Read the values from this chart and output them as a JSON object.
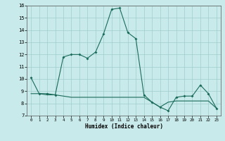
{
  "line1_x": [
    0,
    1,
    2,
    3,
    4,
    5,
    6,
    7,
    8,
    9,
    10,
    11,
    12,
    13,
    14,
    15,
    16,
    17,
    18,
    19,
    20,
    21,
    22,
    23
  ],
  "line1_y": [
    10.1,
    8.8,
    8.8,
    8.7,
    11.8,
    12.0,
    12.0,
    11.7,
    12.2,
    13.7,
    15.7,
    15.8,
    13.8,
    13.3,
    8.7,
    8.1,
    7.7,
    7.4,
    8.5,
    8.6,
    8.6,
    9.5,
    8.8,
    7.6
  ],
  "line2_x": [
    0,
    1,
    2,
    3,
    4,
    5,
    6,
    7,
    8,
    9,
    10,
    11,
    12,
    13,
    14,
    15,
    16,
    17,
    18,
    19,
    20,
    21,
    22,
    23
  ],
  "line2_y": [
    8.8,
    8.8,
    8.7,
    8.7,
    8.6,
    8.5,
    8.5,
    8.5,
    8.5,
    8.5,
    8.5,
    8.5,
    8.5,
    8.5,
    8.5,
    8.1,
    7.7,
    8.1,
    8.2,
    8.2,
    8.2,
    8.2,
    8.2,
    7.6
  ],
  "line_color": "#1a6b5a",
  "bg_color": "#c8eaea",
  "grid_color": "#a0cccc",
  "xlabel": "Humidex (Indice chaleur)",
  "ylim": [
    7,
    16
  ],
  "xlim": [
    -0.5,
    23.5
  ],
  "yticks": [
    7,
    8,
    9,
    10,
    11,
    12,
    13,
    14,
    15,
    16
  ],
  "xticks": [
    0,
    1,
    2,
    3,
    4,
    5,
    6,
    7,
    8,
    9,
    10,
    11,
    12,
    13,
    14,
    15,
    16,
    17,
    18,
    19,
    20,
    21,
    22,
    23
  ]
}
